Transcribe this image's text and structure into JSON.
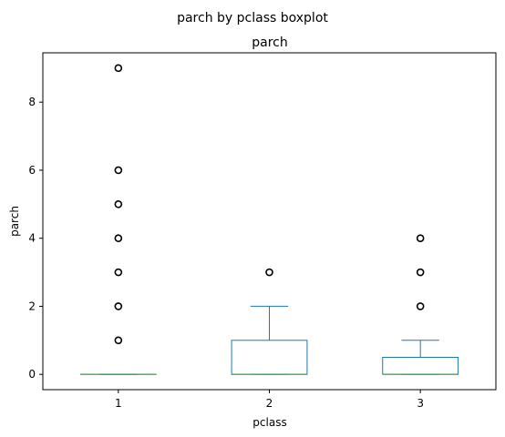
{
  "chart_data": {
    "type": "boxplot",
    "suptitle": "parch by pclass boxplot",
    "title": "parch",
    "xlabel": "pclass",
    "ylabel": "parch",
    "categories": [
      "1",
      "2",
      "3"
    ],
    "yticks": [
      0,
      2,
      4,
      6,
      8
    ],
    "ylim": [
      -0.45,
      9.45
    ],
    "grid": false,
    "colors": {
      "box": "#1f77b4",
      "median": "#2ca02c",
      "flier": "#000000"
    },
    "boxes": [
      {
        "category": "1",
        "whisker_low": 0,
        "q1": 0,
        "median": 0,
        "q3": 0,
        "whisker_high": 0,
        "fliers": [
          1,
          2,
          3,
          4,
          5,
          6,
          9
        ]
      },
      {
        "category": "2",
        "whisker_low": 0,
        "q1": 0,
        "median": 0,
        "q3": 1,
        "whisker_high": 2,
        "fliers": [
          3
        ]
      },
      {
        "category": "3",
        "whisker_low": 0,
        "q1": 0,
        "median": 0,
        "q3": 0.5,
        "whisker_high": 1,
        "fliers": [
          2,
          3,
          4
        ]
      }
    ]
  }
}
